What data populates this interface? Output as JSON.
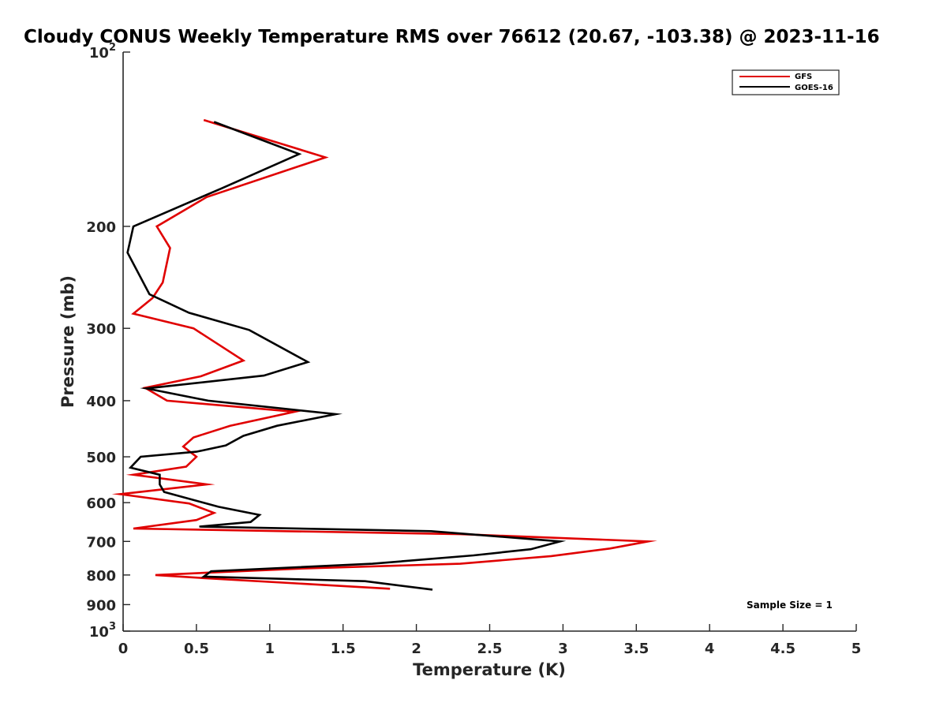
{
  "chart_data": {
    "type": "line",
    "title": "Cloudy CONUS Weekly Temperature RMS over 76612 (20.67, -103.38) @ 2023-11-16",
    "xlabel": "Temperature (K)",
    "ylabel": "Pressure (mb)",
    "xlim": [
      0,
      5
    ],
    "ylim": [
      100,
      1000
    ],
    "yscale": "log",
    "y_reversed": true,
    "xticks": [
      0,
      0.5,
      1,
      1.5,
      2,
      2.5,
      3,
      3.5,
      4,
      4.5,
      5
    ],
    "xtick_labels": [
      "0",
      "0.5",
      "1",
      "1.5",
      "2",
      "2.5",
      "3",
      "3.5",
      "4",
      "4.5",
      "5"
    ],
    "yticks": [
      {
        "value": 100,
        "base": "10",
        "exp": "2"
      },
      {
        "value": 200,
        "label": "200"
      },
      {
        "value": 300,
        "label": "300"
      },
      {
        "value": 400,
        "label": "400"
      },
      {
        "value": 500,
        "label": "500"
      },
      {
        "value": 600,
        "label": "600"
      },
      {
        "value": 700,
        "label": "700"
      },
      {
        "value": 800,
        "label": "800"
      },
      {
        "value": 900,
        "label": "900"
      },
      {
        "value": 1000,
        "base": "10",
        "exp": "3"
      }
    ],
    "legend_position": "top-right",
    "annotation": "Sample Size = 1",
    "series": [
      {
        "name": "GFS",
        "color": "#e00000",
        "points": [
          [
            0.55,
            131
          ],
          [
            1.38,
            152
          ],
          [
            0.57,
            178
          ],
          [
            0.23,
            200
          ],
          [
            0.32,
            218
          ],
          [
            0.27,
            250
          ],
          [
            0.2,
            266
          ],
          [
            0.07,
            283
          ],
          [
            0.48,
            300
          ],
          [
            0.82,
            341
          ],
          [
            0.53,
            363
          ],
          [
            0.15,
            380
          ],
          [
            0.3,
            400
          ],
          [
            1.17,
            418
          ],
          [
            0.73,
            442
          ],
          [
            0.48,
            463
          ],
          [
            0.41,
            480
          ],
          [
            0.5,
            500
          ],
          [
            0.43,
            520
          ],
          [
            0.07,
            537
          ],
          [
            0.57,
            558
          ],
          [
            -0.02,
            580
          ],
          [
            0.45,
            602
          ],
          [
            0.62,
            625
          ],
          [
            0.5,
            643
          ],
          [
            0.07,
            665
          ],
          [
            2.3,
            680
          ],
          [
            3.58,
            700
          ],
          [
            3.32,
            720
          ],
          [
            2.92,
            742
          ],
          [
            2.3,
            765
          ],
          [
            1.2,
            780
          ],
          [
            0.22,
            800
          ],
          [
            0.55,
            810
          ],
          [
            1.82,
            845
          ]
        ]
      },
      {
        "name": "GOES-16",
        "color": "#000000",
        "points": [
          [
            0.62,
            132
          ],
          [
            1.2,
            150
          ],
          [
            0.67,
            172
          ],
          [
            0.07,
            200
          ],
          [
            0.03,
            222
          ],
          [
            0.18,
            262
          ],
          [
            0.45,
            282
          ],
          [
            0.86,
            302
          ],
          [
            1.26,
            343
          ],
          [
            0.96,
            362
          ],
          [
            0.16,
            381
          ],
          [
            0.58,
            400
          ],
          [
            1.45,
            422
          ],
          [
            1.05,
            442
          ],
          [
            0.82,
            460
          ],
          [
            0.7,
            478
          ],
          [
            0.5,
            490
          ],
          [
            0.12,
            500
          ],
          [
            0.05,
            522
          ],
          [
            0.25,
            537
          ],
          [
            0.25,
            558
          ],
          [
            0.28,
            575
          ],
          [
            0.65,
            610
          ],
          [
            0.93,
            630
          ],
          [
            0.87,
            648
          ],
          [
            0.52,
            660
          ],
          [
            2.1,
            672
          ],
          [
            2.98,
            700
          ],
          [
            2.78,
            722
          ],
          [
            2.39,
            740
          ],
          [
            1.7,
            765
          ],
          [
            0.6,
            788
          ],
          [
            0.55,
            805
          ],
          [
            1.65,
            820
          ],
          [
            2.11,
            848
          ]
        ]
      }
    ]
  }
}
